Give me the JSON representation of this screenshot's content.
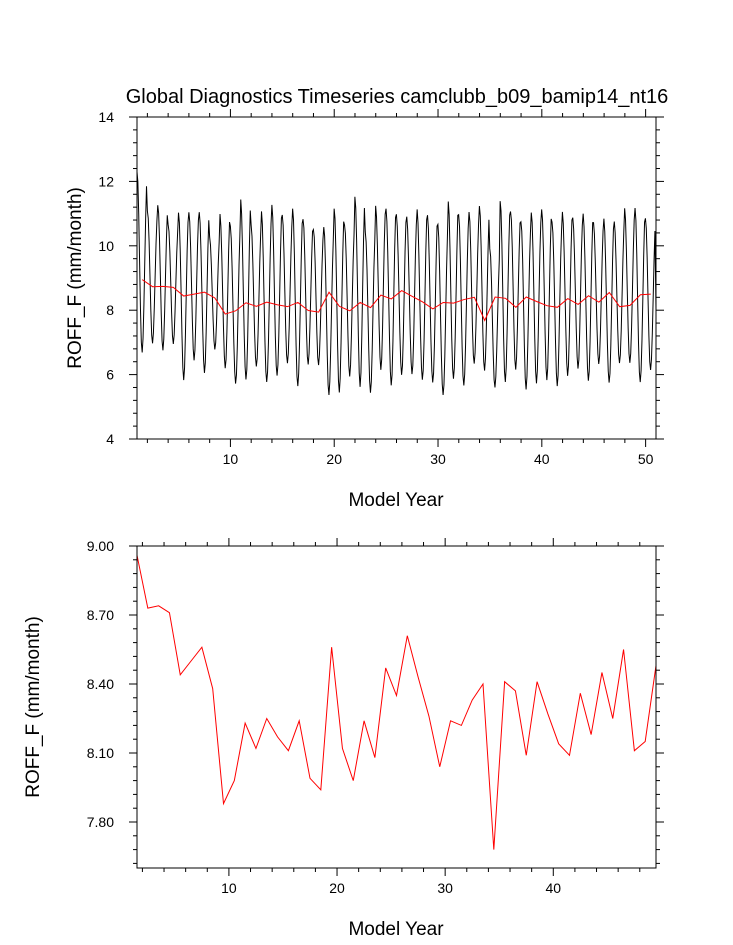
{
  "chart_data": [
    {
      "type": "line",
      "title": "Global Diagnostics Timeseries camclubb_b09_bamip14_nt16",
      "xlabel": "Model Year",
      "ylabel": "ROFF_F (mm/month)",
      "xlim": [
        1,
        51
      ],
      "ylim": [
        4,
        14
      ],
      "xticks": [
        10,
        20,
        30,
        40,
        50
      ],
      "yticks": [
        4,
        6,
        8,
        10,
        12,
        14
      ],
      "ytick_labels": [
        "4",
        "6",
        "8",
        "10",
        "12",
        "14"
      ],
      "series": [
        {
          "color": "#000000",
          "kind": "monthly",
          "x_start": 1.0,
          "x_step": 0.0833,
          "annual_max": [
            12.3,
            11.1,
            11.3,
            10.7,
            11.1,
            11.1,
            11.1,
            10.3,
            11.0,
            10.6,
            11.4,
            10.6,
            11.0,
            11.2,
            10.9,
            11.1,
            10.8,
            10.5,
            10.6,
            11.2,
            10.7,
            11.6,
            10.5,
            11.3,
            11.2,
            11.0,
            10.9,
            11.1,
            10.9,
            10.6,
            11.3,
            10.9,
            11.0,
            11.2,
            9.9,
            11.4,
            11.1,
            10.8,
            11.1,
            11.2,
            10.8,
            11.1,
            10.9,
            11.0,
            10.7,
            10.8,
            10.7,
            11.1,
            11.1,
            10.8
          ],
          "annual_min": [
            6.7,
            7.0,
            6.8,
            7.0,
            5.9,
            6.5,
            6.1,
            6.8,
            6.2,
            5.7,
            5.8,
            6.2,
            5.7,
            5.9,
            6.3,
            5.6,
            6.3,
            6.3,
            5.4,
            5.5,
            6.0,
            5.7,
            5.5,
            6.2,
            5.7,
            6.0,
            6.0,
            5.8,
            5.7,
            5.3,
            5.8,
            5.6,
            6.3,
            6.1,
            5.6,
            5.8,
            6.2,
            5.6,
            5.8,
            5.9,
            5.7,
            6.0,
            6.2,
            5.8,
            6.3,
            5.7,
            6.3,
            6.3,
            5.7,
            6.1
          ],
          "final_value": 8.0
        },
        {
          "color": "#ff0000",
          "kind": "annual",
          "x": [
            1.5,
            2.5,
            3.5,
            4.5,
            5.5,
            6.5,
            7.5,
            8.5,
            9.5,
            10.5,
            11.5,
            12.5,
            13.5,
            14.5,
            15.5,
            16.5,
            17.5,
            18.5,
            19.5,
            20.5,
            21.5,
            22.5,
            23.5,
            24.5,
            25.5,
            26.5,
            27.5,
            28.5,
            29.5,
            30.5,
            31.5,
            32.5,
            33.5,
            34.5,
            35.5,
            36.5,
            37.5,
            38.5,
            39.5,
            40.5,
            41.5,
            42.5,
            43.5,
            44.5,
            45.5,
            46.5,
            47.5,
            48.5,
            49.5,
            50.5
          ],
          "values": [
            8.95,
            8.73,
            8.74,
            8.71,
            8.44,
            8.5,
            8.56,
            8.38,
            7.88,
            7.98,
            8.23,
            8.12,
            8.25,
            8.17,
            8.11,
            8.24,
            7.99,
            7.94,
            8.56,
            8.12,
            7.98,
            8.24,
            8.08,
            8.47,
            8.35,
            8.61,
            8.43,
            8.26,
            8.04,
            8.24,
            8.22,
            8.33,
            8.4,
            7.68,
            8.41,
            8.37,
            8.09,
            8.41,
            8.27,
            8.14,
            8.09,
            8.36,
            8.18,
            8.45,
            8.25,
            8.55,
            8.11,
            8.15,
            8.48,
            8.5
          ]
        }
      ]
    },
    {
      "type": "line",
      "title": "",
      "xlabel": "Model Year",
      "ylabel": "ROFF_F (mm/month)",
      "xlim": [
        1.5,
        49.5
      ],
      "ylim": [
        7.6,
        9.0
      ],
      "xticks": [
        10,
        20,
        30,
        40
      ],
      "yticks": [
        7.8,
        8.1,
        8.4,
        8.7,
        9.0
      ],
      "ytick_labels": [
        "7.80",
        "8.10",
        "8.40",
        "8.70",
        "9.00"
      ],
      "series": [
        {
          "color": "#ff0000",
          "x": [
            1.5,
            2.5,
            3.5,
            4.5,
            5.5,
            6.5,
            7.5,
            8.5,
            9.5,
            10.5,
            11.5,
            12.5,
            13.5,
            14.5,
            15.5,
            16.5,
            17.5,
            18.5,
            19.5,
            20.5,
            21.5,
            22.5,
            23.5,
            24.5,
            25.5,
            26.5,
            27.5,
            28.5,
            29.5,
            30.5,
            31.5,
            32.5,
            33.5,
            34.5,
            35.5,
            36.5,
            37.5,
            38.5,
            39.5,
            40.5,
            41.5,
            42.5,
            43.5,
            44.5,
            45.5,
            46.5,
            47.5,
            48.5,
            49.5
          ],
          "values": [
            8.96,
            8.73,
            8.74,
            8.71,
            8.44,
            8.5,
            8.56,
            8.38,
            7.88,
            7.98,
            8.23,
            8.12,
            8.25,
            8.17,
            8.11,
            8.24,
            7.99,
            7.94,
            8.56,
            8.12,
            7.98,
            8.24,
            8.08,
            8.47,
            8.35,
            8.61,
            8.43,
            8.26,
            8.04,
            8.24,
            8.22,
            8.33,
            8.4,
            7.68,
            8.41,
            8.37,
            8.09,
            8.41,
            8.27,
            8.14,
            8.09,
            8.36,
            8.18,
            8.45,
            8.25,
            8.55,
            8.11,
            8.15,
            8.48
          ]
        }
      ]
    }
  ]
}
